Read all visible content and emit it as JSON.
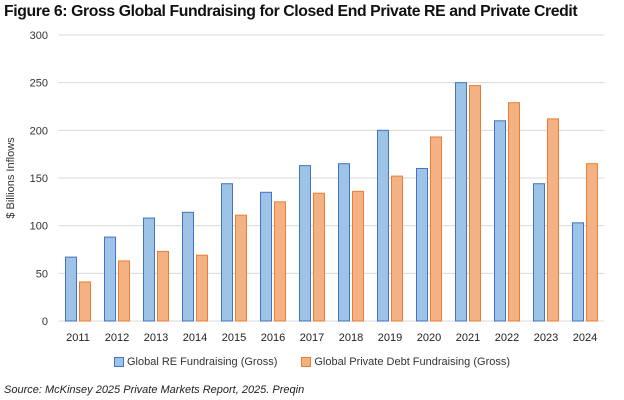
{
  "title": "Figure 6: Gross Global Fundraising for Closed End Private RE and Private Credit",
  "source": "Source: McKinsey 2025 Private Markets Report, 2025.  Preqin",
  "chart_data": {
    "type": "bar",
    "title": "Figure 6: Gross Global Fundraising for Closed End Private RE and Private Credit",
    "xlabel": "",
    "ylabel": "$ Billions Inflows",
    "ylim": [
      0,
      300
    ],
    "yticks": [
      0,
      50,
      100,
      150,
      200,
      250,
      300
    ],
    "grid": true,
    "legend": "bottom",
    "categories": [
      "2011",
      "2012",
      "2013",
      "2014",
      "2015",
      "2016",
      "2017",
      "2018",
      "2019",
      "2020",
      "2021",
      "2022",
      "2023",
      "2024"
    ],
    "series": [
      {
        "name": "Global RE Fundraising (Gross)",
        "color": "#9DC3E6",
        "edge": "#4472C4",
        "values": [
          67,
          88,
          108,
          114,
          144,
          135,
          163,
          165,
          200,
          160,
          250,
          210,
          144,
          103
        ]
      },
      {
        "name": "Global Private Debt Fundraising (Gross)",
        "color": "#F4B183",
        "edge": "#ED7D31",
        "values": [
          41,
          63,
          73,
          69,
          111,
          125,
          134,
          136,
          152,
          193,
          247,
          229,
          212,
          165
        ]
      }
    ]
  }
}
